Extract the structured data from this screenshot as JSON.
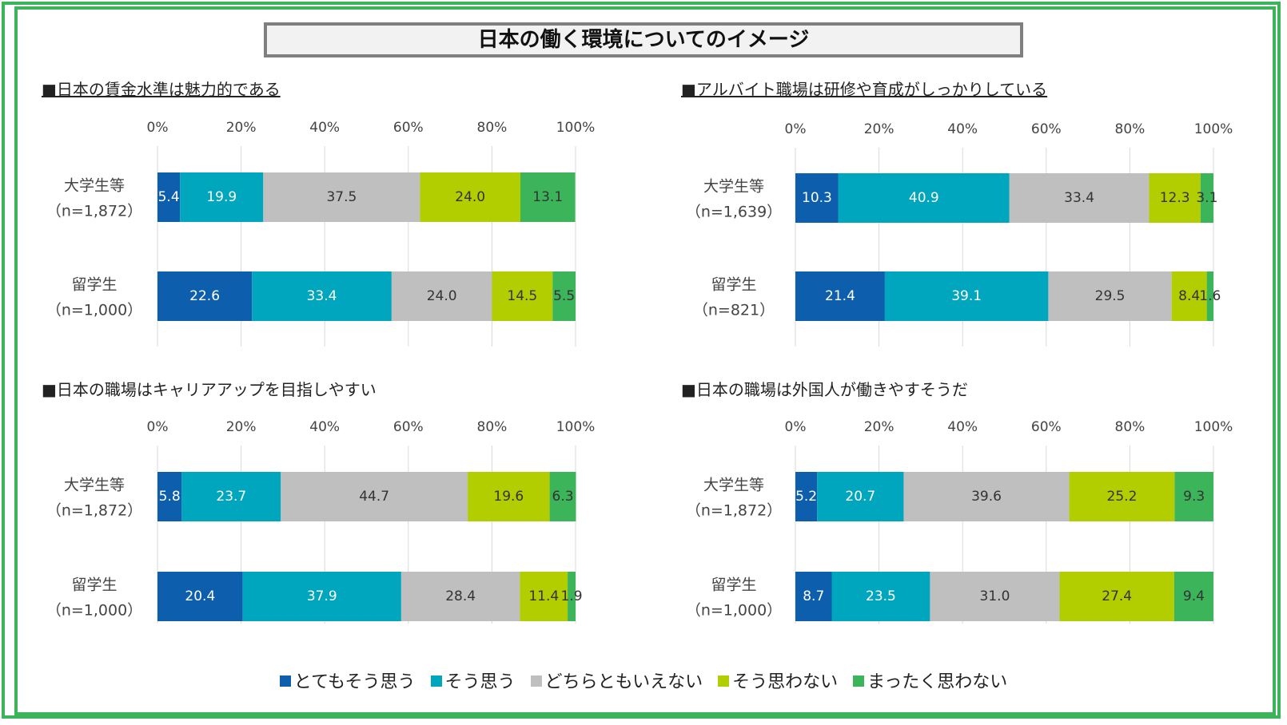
{
  "title": "日本の働く環境についてのイメージ",
  "colors": [
    "#0d5fae",
    "#00a6bd",
    "#bfbfbf",
    "#b2cd00",
    "#3cb55a"
  ],
  "legend": [
    "とてもそう思う",
    "そう思う",
    "どちらともいえない",
    "そう思わない",
    "まったく思わない"
  ],
  "chart_data": [
    {
      "type": "bar",
      "title": "■日本の賃金水準は魅力的である",
      "orientation": "horizontal-stacked",
      "xlim": [
        0,
        100
      ],
      "xticks": [
        "0%",
        "20%",
        "40%",
        "60%",
        "80%",
        "100%"
      ],
      "categories": [
        [
          "大学生等",
          "（n=1,872）"
        ],
        [
          "留学生",
          "（n=1,000）"
        ]
      ],
      "series": [
        {
          "name": "とてもそう思う",
          "values": [
            5.4,
            22.6
          ],
          "labels": [
            "5.4",
            "22.6"
          ]
        },
        {
          "name": "そう思う",
          "values": [
            19.9,
            33.4
          ],
          "labels": [
            "19.9",
            "33.4"
          ]
        },
        {
          "name": "どちらともいえない",
          "values": [
            37.5,
            24.0
          ],
          "labels": [
            "37.5",
            "24.0"
          ]
        },
        {
          "name": "そう思わない",
          "values": [
            24.0,
            14.5
          ],
          "labels": [
            "24.0",
            "14.5"
          ]
        },
        {
          "name": "まったく思わない",
          "values": [
            13.1,
            5.5
          ],
          "labels": [
            "13.1",
            "5.5"
          ]
        }
      ]
    },
    {
      "type": "bar",
      "title": "■アルバイト職場は研修や育成がしっかりしている",
      "orientation": "horizontal-stacked",
      "xlim": [
        0,
        100
      ],
      "xticks": [
        "0%",
        "20%",
        "40%",
        "60%",
        "80%",
        "100%"
      ],
      "categories": [
        [
          "大学生等",
          "（n=1,639）"
        ],
        [
          "留学生",
          "（n=821）"
        ]
      ],
      "series": [
        {
          "name": "とてもそう思う",
          "values": [
            10.3,
            21.4
          ],
          "labels": [
            "10.3",
            "21.4"
          ]
        },
        {
          "name": "そう思う",
          "values": [
            40.9,
            39.1
          ],
          "labels": [
            "40.9",
            "39.1"
          ]
        },
        {
          "name": "どちらともいえない",
          "values": [
            33.4,
            29.5
          ],
          "labels": [
            "33.4",
            "29.5"
          ]
        },
        {
          "name": "そう思わない",
          "values": [
            12.3,
            8.4
          ],
          "labels": [
            "12.3",
            "8.4"
          ]
        },
        {
          "name": "まったく思わない",
          "values": [
            3.1,
            1.6
          ],
          "labels": [
            "3.1",
            "1.6"
          ]
        }
      ]
    },
    {
      "type": "bar",
      "title": "■日本の職場はキャリアアップを目指しやすい",
      "orientation": "horizontal-stacked",
      "xlim": [
        0,
        100
      ],
      "xticks": [
        "0%",
        "20%",
        "40%",
        "60%",
        "80%",
        "100%"
      ],
      "categories": [
        [
          "大学生等",
          "（n=1,872）"
        ],
        [
          "留学生",
          "（n=1,000）"
        ]
      ],
      "series": [
        {
          "name": "とてもそう思う",
          "values": [
            5.8,
            20.4
          ],
          "labels": [
            "5.8",
            "20.4"
          ]
        },
        {
          "name": "そう思う",
          "values": [
            23.7,
            37.9
          ],
          "labels": [
            "23.7",
            "37.9"
          ]
        },
        {
          "name": "どちらともいえない",
          "values": [
            44.7,
            28.4
          ],
          "labels": [
            "44.7",
            "28.4"
          ]
        },
        {
          "name": "そう思わない",
          "values": [
            19.6,
            11.4
          ],
          "labels": [
            "19.6",
            "11.4"
          ]
        },
        {
          "name": "まったく思わない",
          "values": [
            6.3,
            1.9
          ],
          "labels": [
            "6.3",
            "1.9"
          ]
        }
      ]
    },
    {
      "type": "bar",
      "title": "■日本の職場は外国人が働きやすそうだ",
      "orientation": "horizontal-stacked",
      "xlim": [
        0,
        100
      ],
      "xticks": [
        "0%",
        "20%",
        "40%",
        "60%",
        "80%",
        "100%"
      ],
      "categories": [
        [
          "大学生等",
          "（n=1,872）"
        ],
        [
          "留学生",
          "（n=1,000）"
        ]
      ],
      "series": [
        {
          "name": "とてもそう思う",
          "values": [
            5.2,
            8.7
          ],
          "labels": [
            "5.2",
            "8.7"
          ]
        },
        {
          "name": "そう思う",
          "values": [
            20.7,
            23.5
          ],
          "labels": [
            "20.7",
            "23.5"
          ]
        },
        {
          "name": "どちらともいえない",
          "values": [
            39.6,
            31.0
          ],
          "labels": [
            "39.6",
            "31.0"
          ]
        },
        {
          "name": "そう思わない",
          "values": [
            25.2,
            27.4
          ],
          "labels": [
            "25.2",
            "27.4"
          ]
        },
        {
          "name": "まったく思わない",
          "values": [
            9.3,
            9.4
          ],
          "labels": [
            "9.3",
            "9.4"
          ]
        }
      ]
    }
  ]
}
